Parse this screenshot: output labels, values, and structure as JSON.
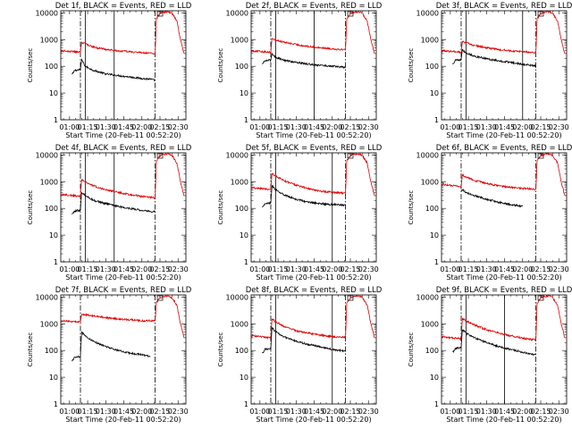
{
  "chart_data": {
    "type": "line",
    "scale": "log-y",
    "layout": "3x3 grid",
    "series_colors": {
      "events": "#000000",
      "lld": "#dd0000"
    },
    "xticks": [
      "01:00",
      "01:15",
      "01:30",
      "01:45",
      "02:00",
      "02:15",
      "02:30"
    ],
    "xticks_minutes": [
      0,
      15,
      30,
      45,
      60,
      75,
      90
    ],
    "xlim_minutes": [
      -7.3,
      96.5
    ],
    "yticks": [
      "1",
      "10",
      "100",
      "1000",
      "10000"
    ],
    "ylim": [
      1,
      12000
    ],
    "xlabel": "Start Time (20-Feb-11 00:52:20)",
    "ylabel": "Counts/sec",
    "panels": [
      {
        "title": "Det 1f, BLACK = Events, RED = LLD",
        "vlines_solid": [
          13,
          37
        ],
        "vlines_dashdot": [
          9,
          71
        ],
        "events": {
          "x": [
            2,
            3.5,
            4,
            9,
            10,
            13,
            20,
            30,
            40,
            50,
            60,
            67,
            71
          ],
          "y": [
            50,
            60,
            70,
            75,
            180,
            100,
            70,
            52,
            45,
            40,
            35,
            33,
            30
          ]
        },
        "lld": {
          "x": [
            -7,
            0,
            8,
            9,
            10,
            13,
            20,
            30,
            40,
            50,
            60,
            67,
            71,
            72,
            75,
            78,
            82,
            85,
            89,
            92,
            95
          ],
          "y": [
            380,
            360,
            340,
            330,
            800,
            700,
            520,
            430,
            380,
            350,
            320,
            310,
            300,
            6000,
            9500,
            10500,
            11000,
            9500,
            5000,
            1000,
            300
          ]
        }
      },
      {
        "title": "Det 2f, BLACK = Events, RED = LLD",
        "vlines_solid": [
          13,
          45
        ],
        "vlines_dashdot": [
          9,
          71
        ],
        "events": {
          "x": [
            2,
            3.5,
            4,
            9,
            10,
            13,
            20,
            30,
            40,
            50,
            60,
            67,
            71
          ],
          "y": [
            120,
            150,
            160,
            170,
            300,
            220,
            170,
            140,
            120,
            110,
            100,
            95,
            90
          ]
        },
        "lld": {
          "x": [
            -7,
            0,
            8,
            9,
            10,
            13,
            20,
            30,
            40,
            50,
            60,
            67,
            71,
            72,
            75,
            78,
            82,
            85,
            89,
            92,
            95
          ],
          "y": [
            380,
            360,
            340,
            330,
            1100,
            950,
            800,
            650,
            550,
            500,
            450,
            430,
            420,
            6000,
            9500,
            10500,
            11000,
            9500,
            5000,
            1000,
            300
          ]
        }
      },
      {
        "title": "Det 3f, BLACK = Events, RED = LLD",
        "vlines_solid": [
          13,
          60
        ],
        "vlines_dashdot": [
          9,
          71
        ],
        "events": {
          "x": [
            2,
            3.5,
            4,
            9,
            10,
            13,
            20,
            30,
            40,
            50,
            60,
            67,
            71
          ],
          "y": [
            120,
            150,
            170,
            180,
            420,
            320,
            240,
            190,
            160,
            140,
            120,
            110,
            100
          ]
        },
        "lld": {
          "x": [
            -7,
            0,
            8,
            9,
            10,
            13,
            20,
            30,
            40,
            50,
            60,
            67,
            71,
            72,
            75,
            78,
            82,
            85,
            89,
            92,
            95
          ],
          "y": [
            380,
            360,
            340,
            330,
            850,
            750,
            600,
            500,
            420,
            380,
            350,
            330,
            320,
            6000,
            9500,
            10500,
            11000,
            9500,
            5000,
            1000,
            300
          ]
        }
      },
      {
        "title": "Det 4f, BLACK = Events, RED = LLD",
        "vlines_solid": [
          13,
          37
        ],
        "vlines_dashdot": [
          9,
          71
        ],
        "events": {
          "x": [
            2,
            3.5,
            4,
            9,
            10,
            13,
            20,
            30,
            40,
            50,
            60,
            67,
            71
          ],
          "y": [
            60,
            70,
            80,
            85,
            400,
            300,
            200,
            150,
            120,
            100,
            85,
            78,
            75
          ]
        },
        "lld": {
          "x": [
            -7,
            0,
            8,
            9,
            10,
            13,
            20,
            30,
            40,
            50,
            60,
            67,
            71,
            72,
            75,
            78,
            82,
            85,
            89,
            92,
            95
          ],
          "y": [
            330,
            310,
            290,
            280,
            1200,
            1000,
            700,
            500,
            400,
            330,
            280,
            260,
            250,
            6000,
            9500,
            10500,
            11000,
            9500,
            5000,
            1000,
            300
          ]
        }
      },
      {
        "title": "Det 5f, BLACK = Events, RED = LLD",
        "vlines_solid": [
          13,
          60
        ],
        "vlines_dashdot": [
          9,
          71
        ],
        "events": {
          "x": [
            2,
            3.5,
            4,
            9,
            10,
            13,
            20,
            30,
            40,
            50,
            60,
            67,
            71
          ],
          "y": [
            110,
            130,
            150,
            160,
            700,
            500,
            320,
            220,
            170,
            150,
            140,
            135,
            130
          ]
        },
        "lld": {
          "x": [
            -7,
            0,
            8,
            9,
            10,
            13,
            20,
            30,
            40,
            50,
            60,
            67,
            71,
            72,
            75,
            78,
            82,
            85,
            89,
            92,
            95
          ],
          "y": [
            600,
            560,
            520,
            500,
            2000,
            1600,
            1100,
            750,
            550,
            450,
            400,
            380,
            370,
            6000,
            9500,
            10500,
            11000,
            9500,
            5000,
            1000,
            300
          ]
        }
      },
      {
        "title": "Det 6f, BLACK = Events, RED = LLD",
        "vlines_solid": [],
        "vlines_dashdot": [
          9,
          71
        ],
        "events": {
          "x": [
            9,
            10,
            13,
            20,
            30,
            40,
            50,
            60
          ],
          "y": [
            450,
            500,
            400,
            300,
            220,
            170,
            140,
            120
          ]
        },
        "lld": {
          "x": [
            -7,
            0,
            8,
            9,
            10,
            13,
            20,
            30,
            40,
            50,
            60,
            67,
            71,
            72,
            75,
            78,
            82,
            85,
            89,
            92,
            95
          ],
          "y": [
            800,
            720,
            650,
            620,
            1800,
            1500,
            1100,
            850,
            700,
            620,
            560,
            540,
            530,
            6000,
            9500,
            10500,
            11000,
            9500,
            5000,
            1000,
            300
          ]
        }
      },
      {
        "title": "Det 7f, BLACK = Events, RED = LLD",
        "vlines_solid": [],
        "vlines_dashdot": [
          9,
          71
        ],
        "events": {
          "x": [
            2,
            3.5,
            4,
            9,
            10,
            13,
            20,
            30,
            40,
            50,
            60,
            67
          ],
          "y": [
            40,
            50,
            55,
            60,
            500,
            350,
            220,
            140,
            100,
            80,
            70,
            60
          ]
        },
        "lld": {
          "x": [
            -7,
            0,
            8,
            9,
            10,
            13,
            20,
            30,
            40,
            50,
            60,
            67,
            71,
            72,
            75,
            78,
            82,
            85,
            89,
            92,
            95
          ],
          "y": [
            1300,
            1250,
            1200,
            1150,
            2300,
            2200,
            2000,
            1700,
            1500,
            1400,
            1300,
            1300,
            1300,
            6000,
            9500,
            10500,
            11000,
            9500,
            5000,
            1000,
            300
          ]
        }
      },
      {
        "title": "Det 8f, BLACK = Events, RED = LLD",
        "vlines_solid": [
          13,
          60
        ],
        "vlines_dashdot": [
          9,
          71
        ],
        "events": {
          "x": [
            2,
            3.5,
            4,
            9,
            10,
            13,
            20,
            30,
            40,
            50,
            60,
            67,
            71
          ],
          "y": [
            80,
            95,
            110,
            120,
            700,
            500,
            320,
            220,
            170,
            140,
            110,
            100,
            95
          ]
        },
        "lld": {
          "x": [
            -7,
            0,
            8,
            9,
            10,
            13,
            20,
            30,
            40,
            50,
            60,
            67,
            71,
            72,
            75,
            78,
            82,
            85,
            89,
            92,
            95
          ],
          "y": [
            360,
            330,
            300,
            290,
            1500,
            1200,
            800,
            550,
            450,
            380,
            330,
            320,
            310,
            6000,
            9500,
            10500,
            11000,
            9500,
            5000,
            1000,
            300
          ]
        }
      },
      {
        "title": "Det 9f, BLACK = Events, RED = LLD",
        "vlines_solid": [
          13,
          45
        ],
        "vlines_dashdot": [
          9,
          71
        ],
        "events": {
          "x": [
            2,
            3.5,
            4,
            9,
            10,
            13,
            20,
            30,
            40,
            50,
            60,
            67,
            71
          ],
          "y": [
            90,
            100,
            120,
            130,
            600,
            450,
            300,
            200,
            140,
            110,
            85,
            75,
            70
          ]
        },
        "lld": {
          "x": [
            -7,
            0,
            8,
            9,
            10,
            13,
            20,
            30,
            40,
            50,
            60,
            67,
            71,
            72,
            75,
            78,
            82,
            85,
            89,
            92,
            95
          ],
          "y": [
            330,
            300,
            280,
            270,
            1600,
            1300,
            900,
            600,
            450,
            360,
            290,
            260,
            250,
            6000,
            9500,
            10500,
            11000,
            9500,
            5000,
            1000,
            300
          ]
        }
      }
    ]
  }
}
